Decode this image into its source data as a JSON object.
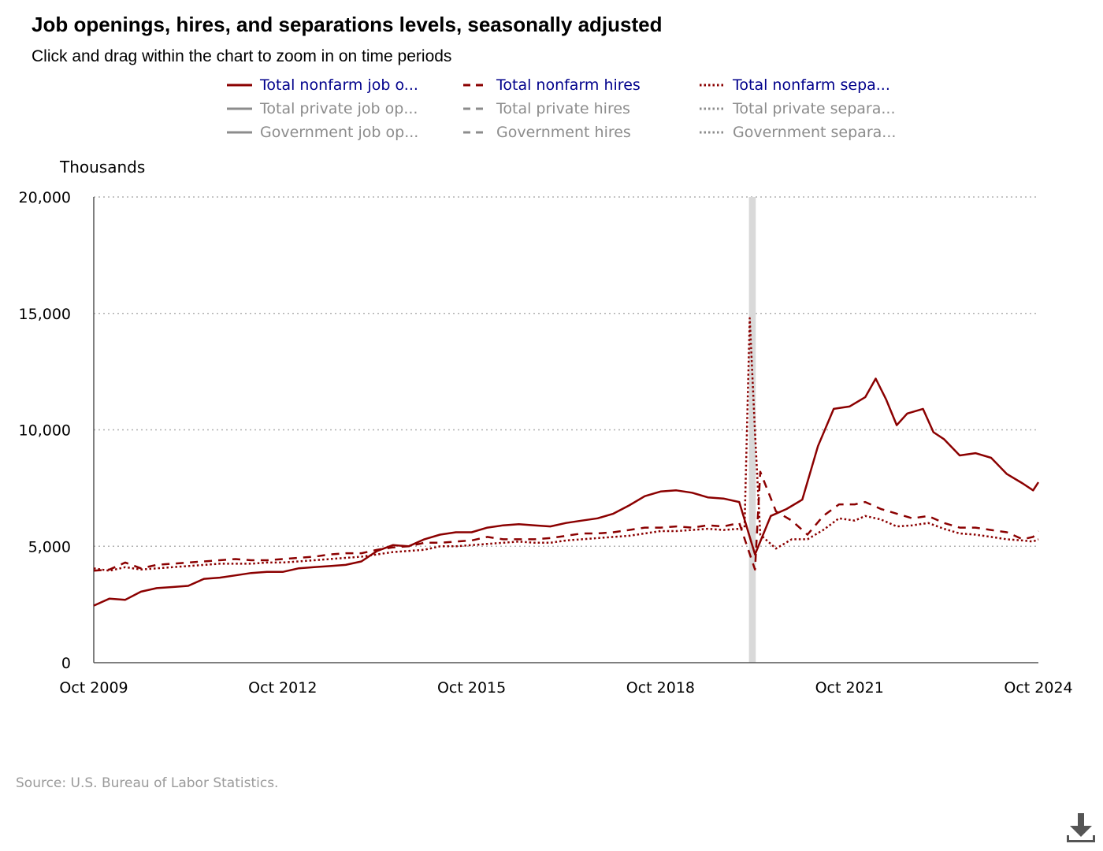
{
  "header": {
    "title": "Job openings, hires, and separations levels, seasonally adjusted",
    "subtitle": "Click and drag within the chart to zoom in on time periods"
  },
  "legend": [
    {
      "label": "Total nonfarm job o...",
      "style": "solid",
      "active": true
    },
    {
      "label": "Total nonfarm hires",
      "style": "dashed",
      "active": true
    },
    {
      "label": "Total nonfarm sepa...",
      "style": "dotted",
      "active": true
    },
    {
      "label": "Total private job op...",
      "style": "solid",
      "active": false
    },
    {
      "label": "Total private hires",
      "style": "dashed",
      "active": false
    },
    {
      "label": "Total private separa...",
      "style": "dotted",
      "active": false
    },
    {
      "label": "Government job op...",
      "style": "solid",
      "active": false
    },
    {
      "label": "Government hires",
      "style": "dashed",
      "active": false
    },
    {
      "label": "Government separa...",
      "style": "dotted",
      "active": false
    }
  ],
  "footer": {
    "source": "Source: U.S. Bureau of Labor Statistics.",
    "download_icon": "download-icon"
  },
  "colors": {
    "series": "#8b0000",
    "legend_active_text": "#00008b",
    "legend_inactive": "#8c8c8c",
    "grid": "#b0b0b0",
    "recession": "#d9d9d9",
    "axis": "#555555"
  },
  "chart_data": {
    "type": "line",
    "ylabel": "Thousands",
    "ylim": [
      0,
      20000
    ],
    "yticks": [
      0,
      5000,
      10000,
      15000,
      20000
    ],
    "ytick_labels": [
      "0",
      "5,000",
      "10,000",
      "15,000",
      "20,000"
    ],
    "xlim": [
      "2009-10",
      "2024-10"
    ],
    "xtick_labels": [
      "Oct 2009",
      "Oct 2012",
      "Oct 2015",
      "Oct 2018",
      "Oct 2021",
      "Oct 2024"
    ],
    "grid": "horizontal dotted",
    "recession_band": [
      "2020-03",
      "2020-04"
    ],
    "series": [
      {
        "name": "Total nonfarm job openings",
        "style": "solid",
        "points": [
          [
            "2009-10",
            2450
          ],
          [
            "2010-01",
            2750
          ],
          [
            "2010-04",
            2700
          ],
          [
            "2010-07",
            3050
          ],
          [
            "2010-10",
            3200
          ],
          [
            "2011-01",
            3250
          ],
          [
            "2011-04",
            3300
          ],
          [
            "2011-07",
            3600
          ],
          [
            "2011-10",
            3650
          ],
          [
            "2012-01",
            3750
          ],
          [
            "2012-04",
            3850
          ],
          [
            "2012-07",
            3900
          ],
          [
            "2012-10",
            3900
          ],
          [
            "2013-01",
            4050
          ],
          [
            "2013-04",
            4100
          ],
          [
            "2013-07",
            4150
          ],
          [
            "2013-10",
            4200
          ],
          [
            "2014-01",
            4350
          ],
          [
            "2014-04",
            4800
          ],
          [
            "2014-07",
            5050
          ],
          [
            "2014-10",
            5000
          ],
          [
            "2015-01",
            5300
          ],
          [
            "2015-04",
            5500
          ],
          [
            "2015-07",
            5600
          ],
          [
            "2015-10",
            5600
          ],
          [
            "2016-01",
            5800
          ],
          [
            "2016-04",
            5900
          ],
          [
            "2016-07",
            5950
          ],
          [
            "2016-10",
            5900
          ],
          [
            "2017-01",
            5850
          ],
          [
            "2017-04",
            6000
          ],
          [
            "2017-07",
            6100
          ],
          [
            "2017-10",
            6200
          ],
          [
            "2018-01",
            6400
          ],
          [
            "2018-04",
            6750
          ],
          [
            "2018-07",
            7150
          ],
          [
            "2018-10",
            7350
          ],
          [
            "2019-01",
            7400
          ],
          [
            "2019-04",
            7300
          ],
          [
            "2019-07",
            7100
          ],
          [
            "2019-10",
            7050
          ],
          [
            "2020-01",
            6900
          ],
          [
            "2020-04",
            4650
          ],
          [
            "2020-07",
            6300
          ],
          [
            "2020-10",
            6600
          ],
          [
            "2021-01",
            7000
          ],
          [
            "2021-04",
            9300
          ],
          [
            "2021-07",
            10900
          ],
          [
            "2021-10",
            11000
          ],
          [
            "2022-01",
            11400
          ],
          [
            "2022-03",
            12200
          ],
          [
            "2022-05",
            11300
          ],
          [
            "2022-07",
            10200
          ],
          [
            "2022-09",
            10700
          ],
          [
            "2022-12",
            10900
          ],
          [
            "2023-02",
            9900
          ],
          [
            "2023-04",
            9600
          ],
          [
            "2023-07",
            8900
          ],
          [
            "2023-10",
            9000
          ],
          [
            "2024-01",
            8800
          ],
          [
            "2024-04",
            8100
          ],
          [
            "2024-07",
            7700
          ],
          [
            "2024-09",
            7400
          ],
          [
            "2024-10",
            7750
          ]
        ]
      },
      {
        "name": "Total nonfarm hires",
        "style": "dashed",
        "points": [
          [
            "2009-10",
            3950
          ],
          [
            "2010-01",
            4000
          ],
          [
            "2010-04",
            4300
          ],
          [
            "2010-07",
            4050
          ],
          [
            "2010-10",
            4200
          ],
          [
            "2011-01",
            4250
          ],
          [
            "2011-04",
            4300
          ],
          [
            "2011-07",
            4350
          ],
          [
            "2011-10",
            4400
          ],
          [
            "2012-01",
            4450
          ],
          [
            "2012-04",
            4400
          ],
          [
            "2012-07",
            4400
          ],
          [
            "2012-10",
            4450
          ],
          [
            "2013-01",
            4500
          ],
          [
            "2013-04",
            4550
          ],
          [
            "2013-07",
            4650
          ],
          [
            "2013-10",
            4700
          ],
          [
            "2014-01",
            4700
          ],
          [
            "2014-04",
            4850
          ],
          [
            "2014-07",
            4950
          ],
          [
            "2014-10",
            5000
          ],
          [
            "2015-01",
            5150
          ],
          [
            "2015-04",
            5150
          ],
          [
            "2015-07",
            5200
          ],
          [
            "2015-10",
            5250
          ],
          [
            "2016-01",
            5400
          ],
          [
            "2016-04",
            5300
          ],
          [
            "2016-07",
            5300
          ],
          [
            "2016-10",
            5300
          ],
          [
            "2017-01",
            5350
          ],
          [
            "2017-04",
            5450
          ],
          [
            "2017-07",
            5550
          ],
          [
            "2017-10",
            5550
          ],
          [
            "2018-01",
            5600
          ],
          [
            "2018-04",
            5700
          ],
          [
            "2018-07",
            5800
          ],
          [
            "2018-10",
            5800
          ],
          [
            "2019-01",
            5850
          ],
          [
            "2019-04",
            5800
          ],
          [
            "2019-07",
            5900
          ],
          [
            "2019-10",
            5850
          ],
          [
            "2020-01",
            6000
          ],
          [
            "2020-04",
            4000
          ],
          [
            "2020-05",
            8200
          ],
          [
            "2020-08",
            6500
          ],
          [
            "2020-11",
            6100
          ],
          [
            "2021-02",
            5500
          ],
          [
            "2021-05",
            6300
          ],
          [
            "2021-08",
            6800
          ],
          [
            "2021-11",
            6800
          ],
          [
            "2022-01",
            6900
          ],
          [
            "2022-04",
            6600
          ],
          [
            "2022-07",
            6400
          ],
          [
            "2022-10",
            6200
          ],
          [
            "2023-01",
            6300
          ],
          [
            "2023-04",
            6000
          ],
          [
            "2023-07",
            5800
          ],
          [
            "2023-10",
            5800
          ],
          [
            "2024-01",
            5700
          ],
          [
            "2024-04",
            5600
          ],
          [
            "2024-07",
            5300
          ],
          [
            "2024-09",
            5400
          ],
          [
            "2024-10",
            5650
          ]
        ]
      },
      {
        "name": "Total nonfarm separations",
        "style": "dotted",
        "points": [
          [
            "2009-10",
            4050
          ],
          [
            "2010-01",
            3950
          ],
          [
            "2010-04",
            4100
          ],
          [
            "2010-07",
            4000
          ],
          [
            "2010-10",
            4050
          ],
          [
            "2011-01",
            4100
          ],
          [
            "2011-04",
            4150
          ],
          [
            "2011-07",
            4200
          ],
          [
            "2011-10",
            4250
          ],
          [
            "2012-01",
            4250
          ],
          [
            "2012-04",
            4250
          ],
          [
            "2012-07",
            4300
          ],
          [
            "2012-10",
            4300
          ],
          [
            "2013-01",
            4350
          ],
          [
            "2013-04",
            4400
          ],
          [
            "2013-07",
            4450
          ],
          [
            "2013-10",
            4500
          ],
          [
            "2014-01",
            4550
          ],
          [
            "2014-04",
            4650
          ],
          [
            "2014-07",
            4750
          ],
          [
            "2014-10",
            4800
          ],
          [
            "2015-01",
            4850
          ],
          [
            "2015-04",
            5000
          ],
          [
            "2015-07",
            5000
          ],
          [
            "2015-10",
            5050
          ],
          [
            "2016-01",
            5100
          ],
          [
            "2016-04",
            5150
          ],
          [
            "2016-07",
            5200
          ],
          [
            "2016-10",
            5150
          ],
          [
            "2017-01",
            5150
          ],
          [
            "2017-04",
            5250
          ],
          [
            "2017-07",
            5300
          ],
          [
            "2017-10",
            5350
          ],
          [
            "2018-01",
            5400
          ],
          [
            "2018-04",
            5450
          ],
          [
            "2018-07",
            5550
          ],
          [
            "2018-10",
            5650
          ],
          [
            "2019-01",
            5650
          ],
          [
            "2019-04",
            5700
          ],
          [
            "2019-07",
            5750
          ],
          [
            "2019-10",
            5700
          ],
          [
            "2020-01",
            5750
          ],
          [
            "2020-02",
            5800
          ],
          [
            "2020-03",
            14800
          ],
          [
            "2020-04",
            9900
          ],
          [
            "2020-05",
            5500
          ],
          [
            "2020-08",
            4900
          ],
          [
            "2020-11",
            5300
          ],
          [
            "2021-02",
            5300
          ],
          [
            "2021-05",
            5700
          ],
          [
            "2021-08",
            6200
          ],
          [
            "2021-11",
            6100
          ],
          [
            "2022-01",
            6300
          ],
          [
            "2022-04",
            6150
          ],
          [
            "2022-07",
            5850
          ],
          [
            "2022-10",
            5900
          ],
          [
            "2023-01",
            6000
          ],
          [
            "2023-04",
            5750
          ],
          [
            "2023-07",
            5550
          ],
          [
            "2023-10",
            5500
          ],
          [
            "2024-01",
            5400
          ],
          [
            "2024-04",
            5300
          ],
          [
            "2024-07",
            5250
          ],
          [
            "2024-09",
            5200
          ],
          [
            "2024-10",
            5300
          ]
        ]
      }
    ]
  }
}
